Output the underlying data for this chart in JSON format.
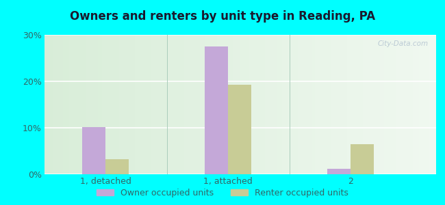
{
  "title": "Owners and renters by unit type in Reading, PA",
  "categories": [
    "1, detached",
    "1, attached",
    "2"
  ],
  "owner_values": [
    10.2,
    27.5,
    1.2
  ],
  "renter_values": [
    3.2,
    19.3,
    6.5
  ],
  "owner_color": "#c4a8d8",
  "renter_color": "#c8cc96",
  "ylim": [
    0,
    30
  ],
  "yticks": [
    0,
    10,
    20,
    30
  ],
  "ytick_labels": [
    "0%",
    "10%",
    "20%",
    "30%"
  ],
  "legend_owner": "Owner occupied units",
  "legend_renter": "Renter occupied units",
  "bg_color_left": "#d8edd8",
  "bg_color_right": "#f0f8f0",
  "outer_bg": "#00ffff",
  "watermark": "City-Data.com",
  "bar_width": 0.38,
  "group_positions": [
    1.0,
    3.0,
    5.0
  ],
  "xlim": [
    0,
    6.4
  ],
  "title_color": "#1a1a2e",
  "tick_color": "#336666",
  "grid_color": "#ffffff",
  "separator_color": "#aaccbb"
}
